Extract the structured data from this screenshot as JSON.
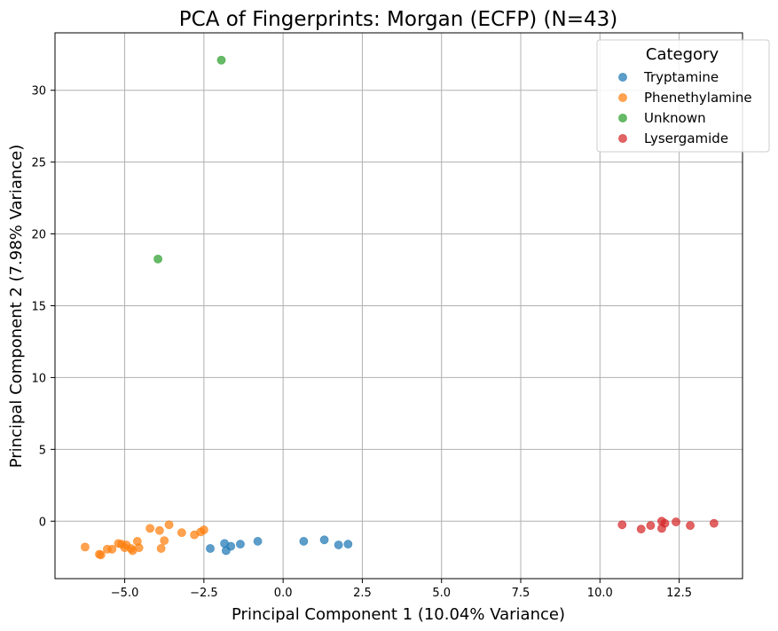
{
  "chart_data": {
    "type": "scatter",
    "title": "PCA of Fingerprints: Morgan (ECFP) (N=43)",
    "xlabel": "Principal Component 1 (10.04% Variance)",
    "ylabel": "Principal Component 2 (7.98% Variance)",
    "xlim": [
      -7.2,
      14.5
    ],
    "ylim": [
      -4.0,
      34.0
    ],
    "xticks": [
      -5.0,
      -2.5,
      0.0,
      2.5,
      5.0,
      7.5,
      10.0,
      12.5
    ],
    "xtick_labels": [
      "−5.0",
      "−2.5",
      "0.0",
      "2.5",
      "5.0",
      "7.5",
      "10.0",
      "12.5"
    ],
    "yticks": [
      0,
      5,
      10,
      15,
      20,
      25,
      30
    ],
    "ytick_labels": [
      "0",
      "5",
      "10",
      "15",
      "20",
      "25",
      "30"
    ],
    "grid": true,
    "legend": {
      "title": "Category",
      "placement": "top-right"
    },
    "series": [
      {
        "name": "Tryptamine",
        "color": "#1f77b4",
        "points": [
          {
            "x": -2.3,
            "y": -1.9
          },
          {
            "x": -1.85,
            "y": -1.55
          },
          {
            "x": -1.8,
            "y": -2.05
          },
          {
            "x": -1.65,
            "y": -1.75
          },
          {
            "x": -1.35,
            "y": -1.6
          },
          {
            "x": -0.8,
            "y": -1.4
          },
          {
            "x": 0.65,
            "y": -1.4
          },
          {
            "x": 1.3,
            "y": -1.3
          },
          {
            "x": 1.75,
            "y": -1.65
          },
          {
            "x": 2.05,
            "y": -1.6
          }
        ]
      },
      {
        "name": "Phenethylamine",
        "color": "#ff7f0e",
        "points": [
          {
            "x": -6.25,
            "y": -1.8
          },
          {
            "x": -5.8,
            "y": -2.3
          },
          {
            "x": -5.75,
            "y": -2.35
          },
          {
            "x": -5.55,
            "y": -1.95
          },
          {
            "x": -5.4,
            "y": -1.95
          },
          {
            "x": -5.2,
            "y": -1.55
          },
          {
            "x": -5.1,
            "y": -1.6
          },
          {
            "x": -5.0,
            "y": -1.85
          },
          {
            "x": -4.95,
            "y": -1.65
          },
          {
            "x": -4.8,
            "y": -1.9
          },
          {
            "x": -4.75,
            "y": -2.05
          },
          {
            "x": -4.6,
            "y": -1.4
          },
          {
            "x": -4.55,
            "y": -1.85
          },
          {
            "x": -4.2,
            "y": -0.5
          },
          {
            "x": -3.9,
            "y": -0.65
          },
          {
            "x": -3.85,
            "y": -1.9
          },
          {
            "x": -3.75,
            "y": -1.35
          },
          {
            "x": -3.6,
            "y": -0.25
          },
          {
            "x": -3.2,
            "y": -0.8
          },
          {
            "x": -2.8,
            "y": -0.95
          },
          {
            "x": -2.6,
            "y": -0.75
          },
          {
            "x": -2.5,
            "y": -0.6
          }
        ]
      },
      {
        "name": "Unknown",
        "color": "#2ca02c",
        "points": [
          {
            "x": -1.95,
            "y": 32.1
          },
          {
            "x": -3.95,
            "y": 18.25
          }
        ]
      },
      {
        "name": "Lysergamide",
        "color": "#d62728",
        "points": [
          {
            "x": 10.7,
            "y": -0.25
          },
          {
            "x": 11.3,
            "y": -0.55
          },
          {
            "x": 11.6,
            "y": -0.3
          },
          {
            "x": 11.95,
            "y": 0.0
          },
          {
            "x": 11.95,
            "y": -0.5
          },
          {
            "x": 12.05,
            "y": -0.15
          },
          {
            "x": 12.4,
            "y": -0.05
          },
          {
            "x": 12.85,
            "y": -0.3
          },
          {
            "x": 13.6,
            "y": -0.15
          }
        ]
      }
    ]
  }
}
